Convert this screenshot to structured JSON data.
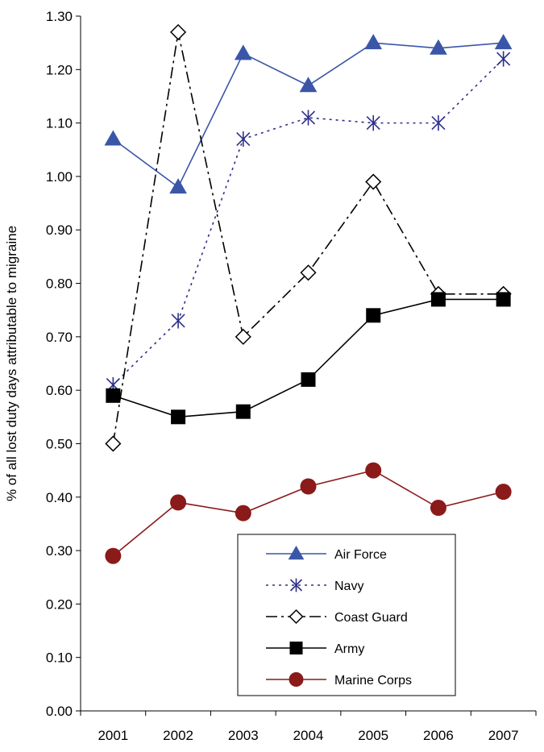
{
  "chart_data": {
    "type": "line",
    "title": "",
    "xlabel": "",
    "ylabel": "% of all lost duty days attributable to migraine",
    "ylim": [
      0,
      1.3
    ],
    "yticks": [
      "0.00",
      "0.10",
      "0.20",
      "0.30",
      "0.40",
      "0.50",
      "0.60",
      "0.70",
      "0.80",
      "0.90",
      "1.00",
      "1.10",
      "1.20",
      "1.30"
    ],
    "categories": [
      "2001",
      "2002",
      "2003",
      "2004",
      "2005",
      "2006",
      "2007"
    ],
    "legend_placement": "bottom-right",
    "grid": false,
    "series": [
      {
        "name": "Air Force",
        "color": "#3a56a8",
        "marker": "triangle",
        "dash": "solid",
        "values": [
          1.07,
          0.98,
          1.23,
          1.17,
          1.25,
          1.24,
          1.25
        ]
      },
      {
        "name": "Navy",
        "color": "#2e2e8a",
        "marker": "asterisk",
        "dash": "dotted",
        "values": [
          0.61,
          0.73,
          1.07,
          1.11,
          1.1,
          1.1,
          1.22
        ]
      },
      {
        "name": "Coast Guard",
        "color": "#000000",
        "marker": "diamond-open",
        "dash": "dashdot",
        "values": [
          0.5,
          1.27,
          0.7,
          0.82,
          0.99,
          0.78,
          0.78
        ]
      },
      {
        "name": "Army",
        "color": "#000000",
        "marker": "square",
        "dash": "solid",
        "values": [
          0.59,
          0.55,
          0.56,
          0.62,
          0.74,
          0.77,
          0.77
        ]
      },
      {
        "name": "Marine Corps",
        "color": "#8b1a1a",
        "marker": "circle",
        "dash": "solid",
        "values": [
          0.29,
          0.39,
          0.37,
          0.42,
          0.45,
          0.38,
          0.41
        ]
      }
    ]
  }
}
